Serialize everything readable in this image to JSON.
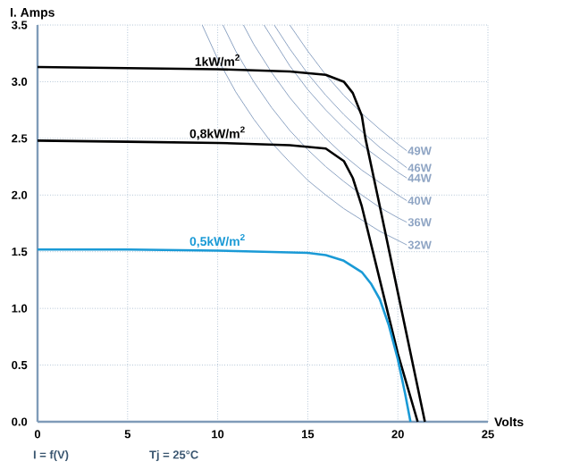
{
  "chart_data": {
    "type": "line",
    "xlabel": "Volts",
    "ylabel": "I. Amps",
    "xlim": [
      0,
      25
    ],
    "ylim": [
      0,
      3.5
    ],
    "xticks": [
      0,
      5,
      10,
      15,
      20,
      25
    ],
    "yticks": [
      {
        "value": 0,
        "label": "0.0"
      },
      {
        "value": 0.5,
        "label": "0.5"
      },
      {
        "value": 1,
        "label": "1.0"
      },
      {
        "value": 1.5,
        "label": "1.5"
      },
      {
        "value": 2,
        "label": "2.0"
      },
      {
        "value": 2.5,
        "label": "2.5"
      },
      {
        "value": 3,
        "label": "3.0"
      },
      {
        "value": 3.5,
        "label": "3.5"
      }
    ],
    "grid": true,
    "series": [
      {
        "name": "49W",
        "color": "#8fa5c4",
        "x": [
          14,
          15,
          16,
          17,
          18,
          19,
          20,
          20.5
        ],
        "values": [
          3.5,
          3.27,
          3.06,
          2.88,
          2.72,
          2.58,
          2.45,
          2.39
        ]
      },
      {
        "name": "46W",
        "color": "#8fa5c4",
        "x": [
          13.14,
          14,
          15,
          16,
          17,
          18,
          19,
          20,
          20.5
        ],
        "values": [
          3.5,
          3.29,
          3.07,
          2.88,
          2.71,
          2.56,
          2.42,
          2.3,
          2.24
        ]
      },
      {
        "name": "44W",
        "color": "#8fa5c4",
        "x": [
          12.57,
          14,
          15,
          16,
          17,
          18,
          19,
          20,
          20.5
        ],
        "values": [
          3.5,
          3.14,
          2.93,
          2.75,
          2.59,
          2.44,
          2.32,
          2.2,
          2.15
        ]
      },
      {
        "name": "40W",
        "color": "#8fa5c4",
        "x": [
          11.43,
          12,
          13,
          14,
          15,
          16,
          17,
          18,
          19,
          20,
          20.5
        ],
        "values": [
          3.5,
          3.33,
          3.08,
          2.86,
          2.67,
          2.5,
          2.35,
          2.22,
          2.11,
          2.0,
          1.95
        ]
      },
      {
        "name": "36W",
        "color": "#8fa5c4",
        "x": [
          10.29,
          11,
          12,
          13,
          14,
          15,
          16,
          17,
          18,
          19,
          20,
          20.5
        ],
        "values": [
          3.5,
          3.27,
          3.0,
          2.77,
          2.57,
          2.4,
          2.25,
          2.12,
          2.0,
          1.89,
          1.8,
          1.76
        ]
      },
      {
        "name": "32W",
        "color": "#8fa5c4",
        "x": [
          9.14,
          10,
          11,
          12,
          13,
          14,
          15,
          16,
          17,
          18,
          19,
          20,
          20.5
        ],
        "values": [
          3.5,
          3.2,
          2.91,
          2.67,
          2.46,
          2.29,
          2.13,
          2.0,
          1.88,
          1.78,
          1.68,
          1.6,
          1.56
        ]
      },
      {
        "name": "1kW/m$^{2}$",
        "color": "#000000",
        "x": [
          0,
          5,
          10,
          14,
          16,
          17,
          17.5,
          18,
          18.2,
          19,
          20,
          21,
          21.5
        ],
        "values": [
          3.13,
          3.12,
          3.11,
          3.09,
          3.06,
          3.0,
          2.9,
          2.7,
          2.5,
          1.9,
          1.14,
          0.38,
          0
        ]
      },
      {
        "name": "0,8kW/m$^{2}$",
        "color": "#000000",
        "x": [
          0,
          5,
          10,
          14,
          16,
          17,
          17.5,
          18,
          19,
          20,
          21.1
        ],
        "values": [
          2.48,
          2.47,
          2.46,
          2.44,
          2.41,
          2.3,
          2.15,
          1.9,
          1.25,
          0.6,
          0
        ]
      },
      {
        "name": "0,5kW/m$^{2}$",
        "color": "#1a9ad6",
        "x": [
          0,
          5,
          10,
          15,
          16,
          17,
          18,
          18.5,
          19,
          19.5,
          20,
          20.4,
          20.7
        ],
        "values": [
          1.52,
          1.52,
          1.51,
          1.49,
          1.47,
          1.42,
          1.32,
          1.22,
          1.08,
          0.85,
          0.55,
          0.25,
          0
        ]
      }
    ],
    "annotations": [
      "I = f(V)",
      "Tj = 25°C"
    ]
  }
}
